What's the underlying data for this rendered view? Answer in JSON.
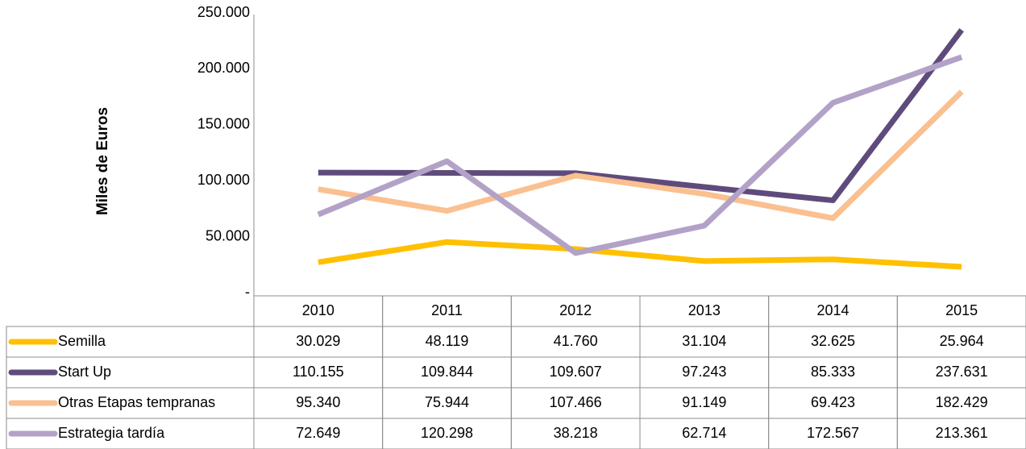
{
  "chart_data": {
    "type": "line",
    "y_axis_label": "Miles de Euros",
    "categories": [
      "2010",
      "2011",
      "2012",
      "2013",
      "2014",
      "2015"
    ],
    "series": [
      {
        "name": "Semilla",
        "color": "#FFC000",
        "values": [
          30029,
          48119,
          41760,
          31104,
          32625,
          25964
        ],
        "value_labels": [
          "30.029",
          "48.119",
          "41.760",
          "31.104",
          "32.625",
          "25.964"
        ]
      },
      {
        "name": "Start Up",
        "color": "#5F4B7B",
        "values": [
          110155,
          109844,
          109607,
          97243,
          85333,
          237631
        ],
        "value_labels": [
          "110.155",
          "109.844",
          "109.607",
          "97.243",
          "85.333",
          "237.631"
        ]
      },
      {
        "name": "Otras Etapas tempranas",
        "color": "#FAC090",
        "values": [
          95340,
          75944,
          107466,
          91149,
          69423,
          182429
        ],
        "value_labels": [
          "95.340",
          "75.944",
          "107.466",
          "91.149",
          "69.423",
          "182.429"
        ]
      },
      {
        "name": "Estrategia tardía",
        "color": "#B3A2C7",
        "values": [
          72649,
          120298,
          38218,
          62714,
          172567,
          213361
        ],
        "value_labels": [
          "72.649",
          "120.298",
          "38.218",
          "62.714",
          "172.567",
          "213.361"
        ]
      }
    ],
    "ylim": [
      0,
      250000
    ],
    "yticks": [
      {
        "value": 0,
        "label": "-"
      },
      {
        "value": 50000,
        "label": "50.000"
      },
      {
        "value": 100000,
        "label": "100.000"
      },
      {
        "value": 150000,
        "label": "150.000"
      },
      {
        "value": 200000,
        "label": "200.000"
      },
      {
        "value": 250000,
        "label": "250.000"
      }
    ],
    "grid": false
  }
}
